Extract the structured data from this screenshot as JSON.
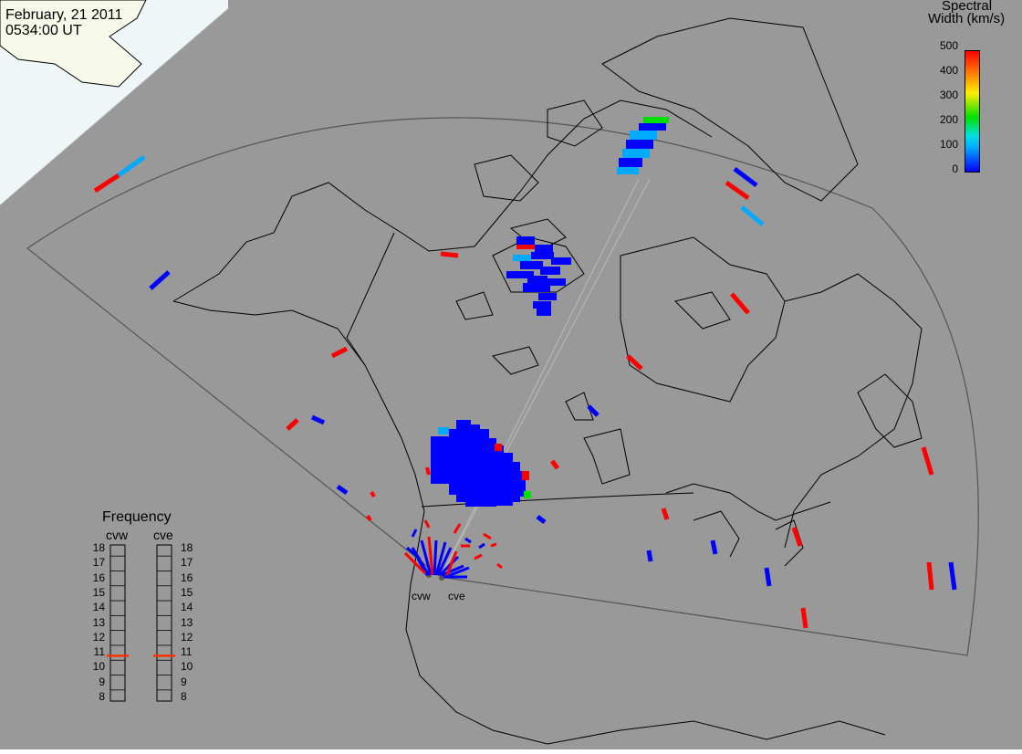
{
  "header": {
    "date": "February, 21 2011",
    "time": "0534:00 UT"
  },
  "colorbar": {
    "title_line1": "Spectral",
    "title_line2": "Width (km/s)",
    "ticks": [
      "500",
      "400",
      "300",
      "200",
      "100",
      "0"
    ],
    "min": 0,
    "max": 500,
    "colors": [
      "#0000ff",
      "#00aaff",
      "#00e0e0",
      "#00e000",
      "#ffee00",
      "#ff8800",
      "#ff0000"
    ]
  },
  "frequency_panel": {
    "title": "Frequency",
    "left_label": "cvw",
    "right_label": "cve",
    "scale": [
      "18",
      "17",
      "16",
      "15",
      "14",
      "13",
      "12",
      "11",
      "10",
      "9",
      "8"
    ],
    "cvw_value": 10.8,
    "cve_value": 10.8,
    "marker_color": "#ff3300"
  },
  "radars": {
    "west_label": "cvw",
    "east_label": "cve"
  },
  "map_colors": {
    "background": "#999999",
    "daylight_region": "#f6f8ea",
    "daylight_water": "#e8f6fc",
    "coast": "#000000",
    "fov_outline": "#555555"
  },
  "legend_colors": {
    "low": "#0000ff",
    "mid_low": "#00aaff",
    "mid": "#00e000",
    "high": "#ff0000"
  }
}
